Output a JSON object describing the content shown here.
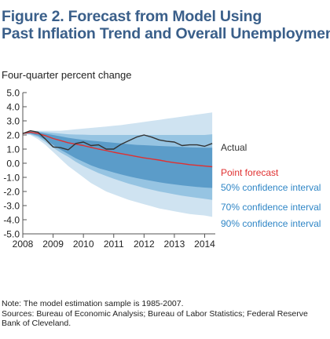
{
  "title": {
    "line1": "Figure 2. Forecast from Model Using",
    "line2": "Past Inflation Trend and Overall Unemployment"
  },
  "notes": {
    "line1": "Note: The model estimation sample is 1985-2007.",
    "line2": "Sources: Bureau of Economic Analysis; Bureau of Labor Statistics; Federal Reserve",
    "line3": "Bank of Cleveland."
  },
  "colors": {
    "actual": "#333333",
    "point_forecast": "#e03030",
    "band_50": "#5b9cc9",
    "band_70": "#96c4e2",
    "band_90": "#cfe3f1",
    "band_50_label": "#2f86c6",
    "axis": "#555555"
  },
  "chart_data": {
    "type": "area",
    "ylabel": "Four-quarter percent change",
    "xlim": [
      2008,
      2014.35
    ],
    "ylim": [
      -5.0,
      5.0
    ],
    "y_ticks": [
      5.0,
      4.0,
      3.0,
      2.0,
      1.0,
      0.0,
      -1.0,
      -2.0,
      -3.0,
      -4.0,
      -5.0
    ],
    "y_tick_labels": [
      "5.0",
      "4.0",
      "3.0",
      "2.0",
      "1.0",
      "0.0",
      "-1.0",
      "-2.0",
      "-3.0",
      "-4.0",
      "-5.0"
    ],
    "x_ticks": [
      2008,
      2009,
      2010,
      2011,
      2012,
      2013,
      2014
    ],
    "x_tick_labels": [
      "2008",
      "2009",
      "2010",
      "2011",
      "2012",
      "2013",
      "2014"
    ],
    "x": [
      2008.0,
      2008.25,
      2008.5,
      2008.75,
      2009.0,
      2009.25,
      2009.5,
      2009.75,
      2010.0,
      2010.25,
      2010.5,
      2010.75,
      2011.0,
      2011.25,
      2011.5,
      2011.75,
      2012.0,
      2012.25,
      2012.5,
      2012.75,
      2013.0,
      2013.25,
      2013.5,
      2013.75,
      2014.0,
      2014.25
    ],
    "bands": [
      {
        "name": "90% confidence interval",
        "upper": [
          2.1,
          2.3,
          2.3,
          2.3,
          2.3,
          2.3,
          2.35,
          2.4,
          2.45,
          2.5,
          2.55,
          2.6,
          2.65,
          2.7,
          2.78,
          2.85,
          2.92,
          3.0,
          3.07,
          3.15,
          3.22,
          3.3,
          3.38,
          3.45,
          3.52,
          3.6
        ],
        "lower": [
          2.1,
          2.0,
          1.7,
          1.3,
          0.8,
          0.3,
          -0.2,
          -0.6,
          -1.0,
          -1.4,
          -1.7,
          -2.0,
          -2.2,
          -2.4,
          -2.6,
          -2.75,
          -2.9,
          -3.05,
          -3.2,
          -3.3,
          -3.4,
          -3.5,
          -3.6,
          -3.65,
          -3.7,
          -3.8
        ]
      },
      {
        "name": "70% confidence interval",
        "upper": [
          2.1,
          2.25,
          2.25,
          2.2,
          2.15,
          2.1,
          2.05,
          2.03,
          2.02,
          2.0,
          2.0,
          2.0,
          2.0,
          2.0,
          2.0,
          2.0,
          2.0,
          2.0,
          2.0,
          2.0,
          2.0,
          2.0,
          2.0,
          2.0,
          2.0,
          2.05
        ],
        "lower": [
          2.1,
          2.05,
          1.85,
          1.5,
          1.1,
          0.75,
          0.45,
          0.1,
          -0.2,
          -0.45,
          -0.7,
          -0.9,
          -1.1,
          -1.28,
          -1.45,
          -1.6,
          -1.75,
          -1.88,
          -2.0,
          -2.1,
          -2.2,
          -2.3,
          -2.38,
          -2.45,
          -2.52,
          -2.6
        ]
      },
      {
        "name": "50% confidence interval",
        "upper": [
          2.1,
          2.2,
          2.2,
          2.1,
          2.0,
          1.9,
          1.8,
          1.72,
          1.65,
          1.6,
          1.55,
          1.5,
          1.45,
          1.4,
          1.35,
          1.3,
          1.28,
          1.25,
          1.22,
          1.2,
          1.18,
          1.15,
          1.13,
          1.11,
          1.1,
          1.1
        ],
        "lower": [
          2.1,
          2.1,
          1.95,
          1.65,
          1.3,
          0.95,
          0.65,
          0.35,
          0.1,
          -0.15,
          -0.35,
          -0.5,
          -0.65,
          -0.8,
          -0.93,
          -1.05,
          -1.15,
          -1.25,
          -1.35,
          -1.43,
          -1.5,
          -1.57,
          -1.63,
          -1.68,
          -1.72,
          -1.75
        ]
      }
    ],
    "series": [
      {
        "name": "Point forecast",
        "x": [
          2008.0,
          2008.25,
          2008.5,
          2008.75,
          2009.0,
          2009.25,
          2009.5,
          2009.75,
          2010.0,
          2010.25,
          2010.5,
          2010.75,
          2011.0,
          2011.25,
          2011.5,
          2011.75,
          2012.0,
          2012.25,
          2012.5,
          2012.75,
          2013.0,
          2013.25,
          2013.5,
          2013.75,
          2014.0,
          2014.25
        ],
        "values": [
          2.1,
          2.2,
          2.1,
          1.95,
          1.75,
          1.6,
          1.45,
          1.35,
          1.25,
          1.12,
          1.0,
          0.9,
          0.78,
          0.68,
          0.58,
          0.48,
          0.38,
          0.3,
          0.22,
          0.12,
          0.04,
          -0.02,
          -0.1,
          -0.15,
          -0.2,
          -0.25
        ]
      },
      {
        "name": "Actual",
        "x": [
          2008.0,
          2008.25,
          2008.5,
          2008.75,
          2009.0,
          2009.25,
          2009.5,
          2009.75,
          2010.0,
          2010.25,
          2010.5,
          2010.75,
          2011.0,
          2011.25,
          2011.5,
          2011.75,
          2012.0,
          2012.25,
          2012.5,
          2012.75,
          2013.0,
          2013.25,
          2013.5,
          2013.75,
          2014.0,
          2014.25
        ],
        "values": [
          2.1,
          2.3,
          2.2,
          1.7,
          1.15,
          1.1,
          0.95,
          1.4,
          1.5,
          1.25,
          1.3,
          1.0,
          1.0,
          1.35,
          1.6,
          1.85,
          2.0,
          1.85,
          1.65,
          1.55,
          1.5,
          1.25,
          1.3,
          1.3,
          1.2,
          1.4
        ]
      }
    ],
    "annotations": [
      {
        "text": "Actual",
        "color_key": "actual"
      },
      {
        "text": "Point forecast",
        "color_key": "point_forecast"
      },
      {
        "text": "50% confidence interval",
        "color_key": "band_50_label"
      },
      {
        "text": "70% confidence interval",
        "color_key": "band_50_label"
      },
      {
        "text": "90% confidence interval",
        "color_key": "band_50_label"
      }
    ]
  }
}
